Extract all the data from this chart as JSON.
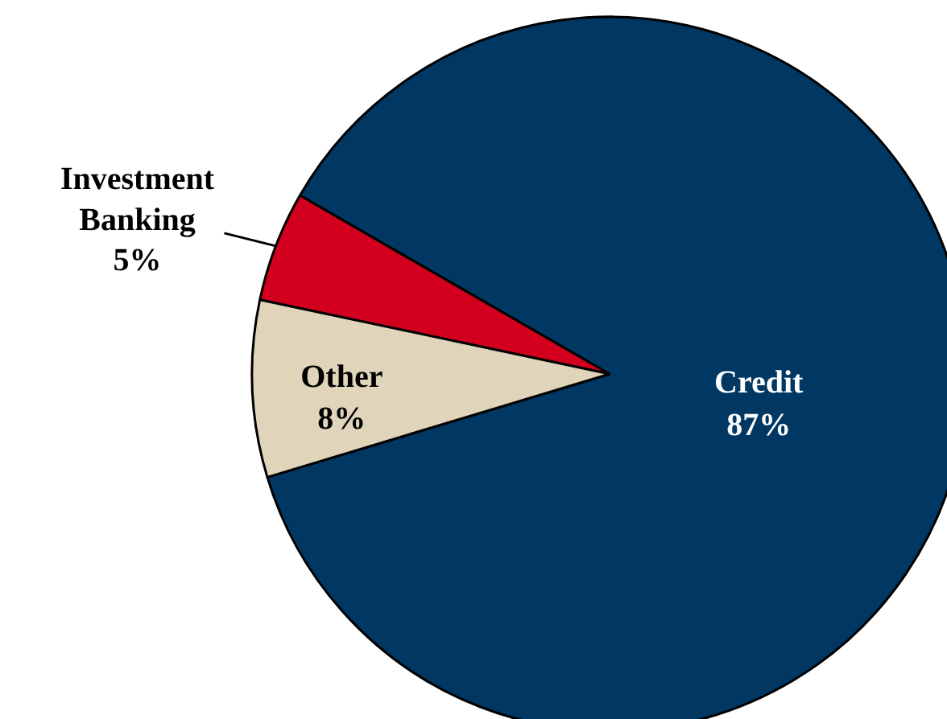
{
  "chart_data": {
    "type": "pie",
    "categories": [
      "Credit",
      "Investment Banking",
      "Other"
    ],
    "values": [
      87,
      5,
      8
    ],
    "value_labels": [
      "87%",
      "5%",
      "8%"
    ],
    "colors": [
      "#003763",
      "#d2001e",
      "#e0d4bb"
    ]
  }
}
